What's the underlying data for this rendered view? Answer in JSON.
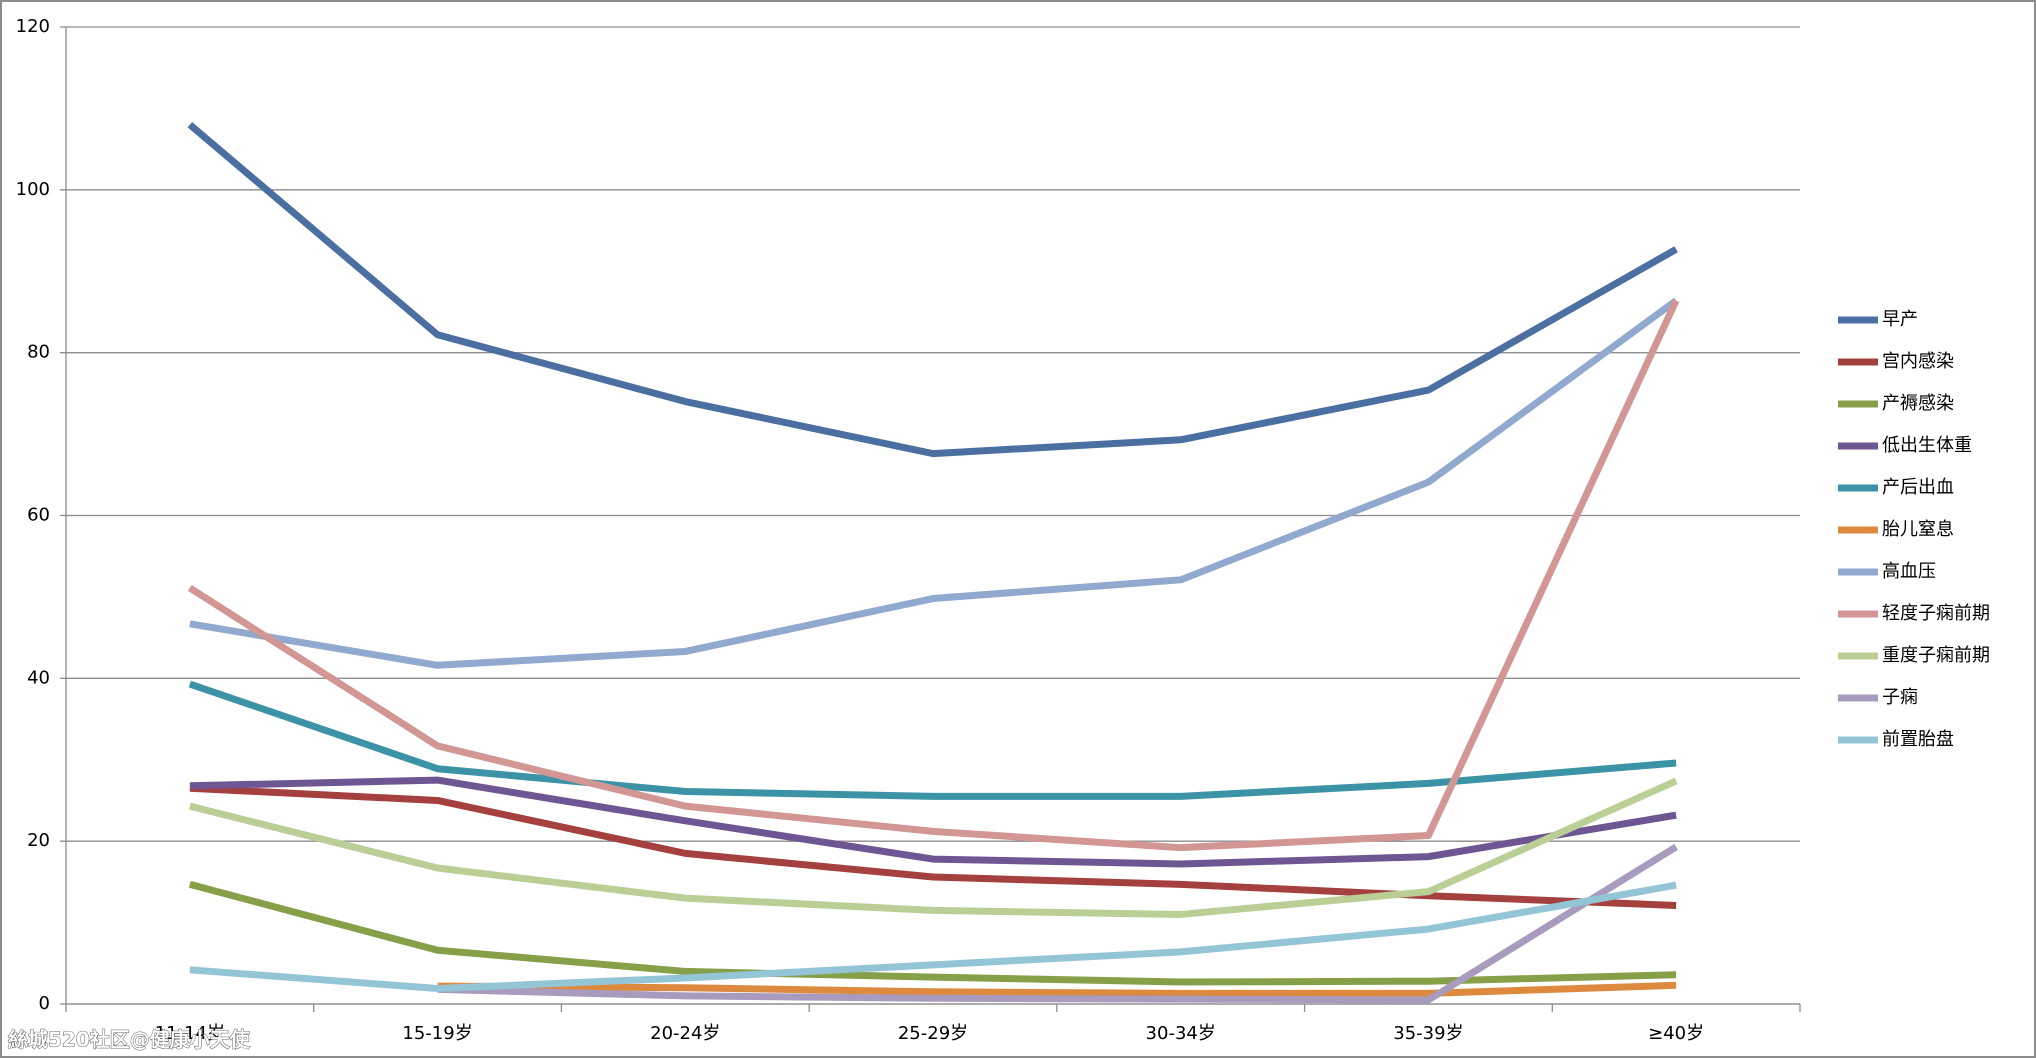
{
  "chart_data": {
    "type": "line",
    "categories": [
      "11-14岁",
      "15-19岁",
      "20-24岁",
      "25-29岁",
      "30-34岁",
      "35-39岁",
      "≥40岁"
    ],
    "ylim": [
      0,
      120
    ],
    "yticks": [
      0,
      20,
      40,
      60,
      80,
      100,
      120
    ],
    "grid": true,
    "legend": "right",
    "series": [
      {
        "name": "早产",
        "color": "#4a6fa0",
        "values": [
          108,
          82.2,
          74,
          67.6,
          69.3,
          75.4,
          92.7
        ]
      },
      {
        "name": "宫内感染",
        "color": "#a4403d",
        "values": [
          26.5,
          25,
          18.5,
          15.6,
          14.7,
          13.3,
          12.1
        ]
      },
      {
        "name": "产褥感染",
        "color": "#86a04a",
        "values": [
          14.7,
          6.6,
          4.0,
          3.3,
          2.7,
          2.8,
          3.6
        ]
      },
      {
        "name": "低出生体重",
        "color": "#6e5693",
        "values": [
          26.8,
          27.5,
          22.5,
          17.8,
          17.2,
          18.1,
          23.2
        ]
      },
      {
        "name": "产后出血",
        "color": "#3d93a6",
        "values": [
          39.3,
          28.9,
          26.1,
          25.5,
          25.5,
          27.1,
          29.6
        ]
      },
      {
        "name": "胎儿窒息",
        "color": "#de8a3e",
        "values": [
          null,
          2.2,
          2.0,
          1.5,
          1.3,
          1.3,
          2.3
        ]
      },
      {
        "name": "高血压",
        "color": "#92a9cf",
        "values": [
          46.7,
          41.6,
          43.3,
          49.8,
          52.1,
          64.1,
          86.4
        ]
      },
      {
        "name": "轻度子痫前期",
        "color": "#d29694",
        "values": [
          51.1,
          31.7,
          24.3,
          21.2,
          19.2,
          20.7,
          86.4
        ]
      },
      {
        "name": "重度子痫前期",
        "color": "#b9cf96",
        "values": [
          24.3,
          16.7,
          13.0,
          11.5,
          11.0,
          13.8,
          27.4
        ]
      },
      {
        "name": "子痫",
        "color": "#a99bbd",
        "values": [
          null,
          1.8,
          1.0,
          0.7,
          0.6,
          0.5,
          19.3
        ]
      },
      {
        "name": "前置胎盘",
        "color": "#93c5d6",
        "values": [
          4.2,
          1.9,
          3.2,
          4.8,
          6.4,
          9.2,
          14.6
        ]
      }
    ],
    "watermark": "絲城520社区@健康小天使"
  }
}
